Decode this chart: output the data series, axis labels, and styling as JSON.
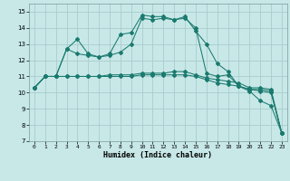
{
  "xlabel": "Humidex (Indice chaleur)",
  "bg_color": "#c8e8e8",
  "grid_color": "#aacccc",
  "line_color": "#1a7a6e",
  "xlim": [
    -0.5,
    23.5
  ],
  "ylim": [
    7,
    15.5
  ],
  "yticks": [
    7,
    8,
    9,
    10,
    11,
    12,
    13,
    14,
    15
  ],
  "xticks": [
    0,
    1,
    2,
    3,
    4,
    5,
    6,
    7,
    8,
    9,
    10,
    11,
    12,
    13,
    14,
    15,
    16,
    17,
    18,
    19,
    20,
    21,
    22,
    23
  ],
  "curve1_x": [
    0,
    1,
    2,
    3,
    4,
    5,
    6,
    7,
    8,
    9,
    10,
    11,
    12,
    13,
    14,
    15,
    16,
    17,
    18,
    19,
    20,
    21,
    22,
    23
  ],
  "curve1_y": [
    10.3,
    11.0,
    11.0,
    12.7,
    13.3,
    12.4,
    12.2,
    12.4,
    13.6,
    13.7,
    14.8,
    14.7,
    14.7,
    14.5,
    14.7,
    13.8,
    13.0,
    11.8,
    11.3,
    10.4,
    10.1,
    9.5,
    9.2,
    7.5
  ],
  "curve2_x": [
    0,
    1,
    2,
    3,
    4,
    5,
    6,
    7,
    8,
    9,
    10,
    11,
    12,
    13,
    14,
    15,
    16,
    17,
    18,
    19,
    20,
    21,
    22,
    23
  ],
  "curve2_y": [
    10.3,
    11.0,
    11.0,
    12.7,
    12.4,
    12.3,
    12.2,
    12.3,
    12.5,
    13.0,
    14.6,
    14.5,
    14.6,
    14.5,
    14.6,
    14.0,
    11.2,
    11.0,
    11.1,
    10.4,
    10.2,
    10.2,
    10.1,
    7.5
  ],
  "curve3_x": [
    0,
    1,
    2,
    3,
    4,
    5,
    6,
    7,
    8,
    9,
    10,
    11,
    12,
    13,
    14,
    15,
    16,
    17,
    18,
    19,
    20,
    21,
    22,
    23
  ],
  "curve3_y": [
    10.3,
    11.0,
    11.0,
    11.0,
    11.0,
    11.0,
    11.0,
    11.1,
    11.1,
    11.1,
    11.2,
    11.2,
    11.2,
    11.3,
    11.3,
    11.1,
    10.9,
    10.8,
    10.7,
    10.6,
    10.3,
    10.3,
    10.2,
    7.5
  ],
  "curve4_x": [
    0,
    1,
    2,
    3,
    4,
    5,
    6,
    7,
    8,
    9,
    10,
    11,
    12,
    13,
    14,
    15,
    16,
    17,
    18,
    19,
    20,
    21,
    22,
    23
  ],
  "curve4_y": [
    10.3,
    11.0,
    11.0,
    11.0,
    11.0,
    11.0,
    11.0,
    11.0,
    11.0,
    11.0,
    11.1,
    11.1,
    11.1,
    11.1,
    11.1,
    11.0,
    10.8,
    10.6,
    10.5,
    10.4,
    10.2,
    10.1,
    10.0,
    7.5
  ]
}
